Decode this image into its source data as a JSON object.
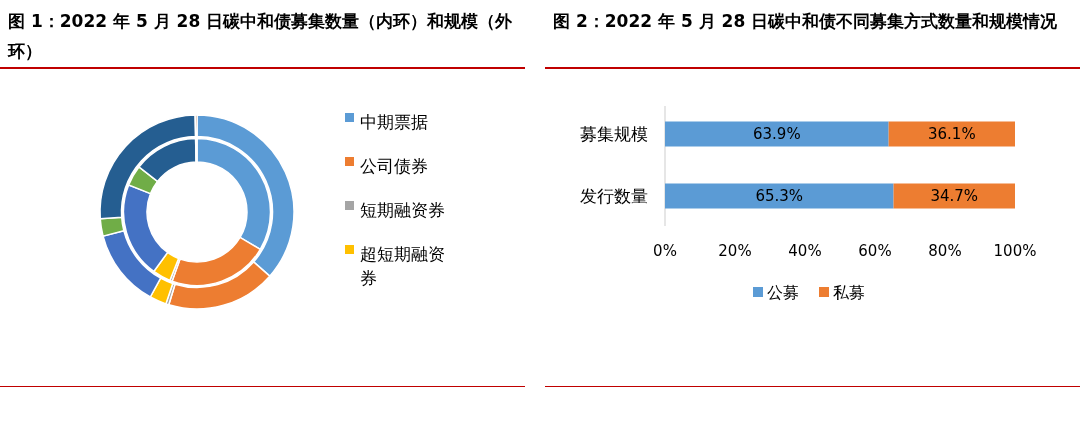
{
  "chart_data": [
    {
      "type": "donut",
      "title": "图 1：2022 年 5 月 28 日碳中和债募集数量（内环）和规模（外环）",
      "categories": [
        "中期票据",
        "公司债券",
        "短期融资券",
        "超短期融资券",
        null,
        null,
        null,
        null
      ],
      "colors": [
        "#5b9bd5",
        "#ed7d31",
        "#a5a5a5",
        "#ffc000",
        "#4472c4",
        "#70ad47",
        "#255e91",
        "#9e480e"
      ],
      "series": [
        {
          "values": [
            33.5,
            22,
            0.5,
            4,
            21,
            4.5,
            14.2,
            0.3
          ]
        },
        {
          "values": [
            36.5,
            18.2,
            0.5,
            2.8,
            13,
            2.9,
            25.8,
            0.3
          ]
        }
      ],
      "legend": "right"
    },
    {
      "type": "bar",
      "title": "图 2：2022 年 5 月 28 日碳中和债不同募集方式数量和规模情况",
      "orientation": "horizontal",
      "stacked": true,
      "categories": [
        "募集规模",
        "发行数量"
      ],
      "series": [
        {
          "name": "公募",
          "color": "#5b9bd5",
          "values": [
            63.9,
            65.3
          ],
          "value_labels": [
            "63.9%",
            "65.3%"
          ]
        },
        {
          "name": "私募",
          "color": "#ed7d31",
          "values": [
            36.1,
            34.7
          ],
          "value_labels": [
            "36.1%",
            "34.7%"
          ]
        }
      ],
      "xlim": [
        0,
        100
      ],
      "xticks": [
        {
          "value": 0,
          "label": "0%"
        },
        {
          "value": 20,
          "label": "20%"
        },
        {
          "value": 40,
          "label": "40%"
        },
        {
          "value": 60,
          "label": "60%"
        },
        {
          "value": 80,
          "label": "80%"
        },
        {
          "value": 100,
          "label": "100%"
        }
      ],
      "grid": false,
      "legend": "bottom"
    }
  ]
}
